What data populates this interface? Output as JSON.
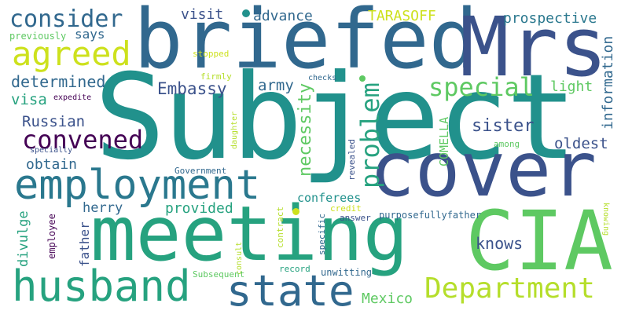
{
  "words": [
    "Subject",
    "briefed",
    "Mrs",
    "cover",
    "meeting",
    "CIA",
    "employment",
    "husband",
    "state",
    "Department",
    "agreed",
    "consider",
    "convened",
    "special",
    "problem",
    "necessity",
    "Embassy",
    "army",
    "determined",
    "Russian",
    "visa",
    "obtain",
    "sister",
    "oldest",
    "information",
    "prospective",
    "TARASOFF",
    "visit",
    "advance",
    "says",
    "previously",
    "light",
    "COMELLA",
    "knows",
    "Mexico",
    "provided",
    "herry",
    "father",
    "divulge",
    "employee",
    "conferees",
    "credit",
    "purposefullyfather",
    "answer",
    "specific",
    "consult",
    "record",
    "unwitting",
    "Subsequent",
    "contract",
    "revealed",
    "Government",
    "daughter",
    "firmly",
    "stopped",
    "checks",
    "expedite",
    "specially",
    "among",
    "knowing"
  ],
  "colors": {
    "dark_purple": "#440154",
    "deep_blue": "#3b528b",
    "slate_blue": "#31688e",
    "teal": "#21918c",
    "green_teal": "#26a27f",
    "green": "#5ec962",
    "lime": "#b5de2b",
    "yellow": "#cde11d"
  }
}
